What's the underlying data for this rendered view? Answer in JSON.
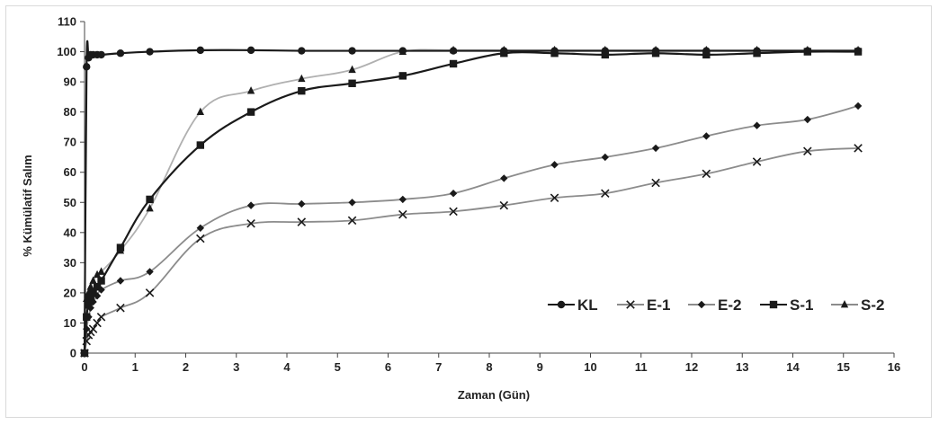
{
  "chart_data": {
    "type": "line",
    "title": "",
    "xlabel": "Zaman  (Gün)",
    "ylabel": "% Kümülatif Salım",
    "xlim": [
      0,
      16
    ],
    "ylim": [
      0,
      110
    ],
    "xticks": [
      "0",
      "1",
      "2",
      "3",
      "4",
      "5",
      "6",
      "7",
      "8",
      "9",
      "10",
      "11",
      "12",
      "13",
      "14",
      "15",
      "16"
    ],
    "yticks": [
      "0",
      "10",
      "20",
      "30",
      "40",
      "50",
      "60",
      "70",
      "80",
      "90",
      "100",
      "110"
    ],
    "grid": false,
    "legend_position": "bottom-right",
    "series": [
      {
        "name": "KL",
        "marker": "circle",
        "color": "#1a1a1a",
        "x": [
          0,
          0.04,
          0.08,
          0.12,
          0.17,
          0.25,
          0.33,
          0.71,
          1.29,
          2.29,
          3.29,
          4.29,
          5.29,
          6.29,
          7.29,
          8.29,
          9.29,
          10.29,
          11.29,
          12.29,
          13.29,
          14.29,
          15.29
        ],
        "y": [
          0,
          95,
          98,
          99,
          99,
          99,
          99,
          99.5,
          100,
          100.5,
          100.5,
          100.3,
          100.3,
          100.3,
          100.3,
          100.3,
          100.3,
          100.3,
          100.3,
          100.3,
          100.3,
          100.3,
          100.3
        ]
      },
      {
        "name": "E-1",
        "marker": "x",
        "color": "#8c8c8c",
        "x": [
          0,
          0.04,
          0.08,
          0.12,
          0.17,
          0.25,
          0.33,
          0.71,
          1.29,
          2.29,
          3.29,
          4.29,
          5.29,
          6.29,
          7.29,
          8.29,
          9.29,
          10.29,
          11.29,
          12.29,
          13.29,
          14.29,
          15.29
        ],
        "y": [
          0,
          4,
          6,
          7,
          8,
          10,
          12,
          15,
          20,
          38,
          43,
          43.5,
          44,
          46,
          47,
          49,
          51.5,
          53,
          56.5,
          59.5,
          63.5,
          67,
          68
        ]
      },
      {
        "name": "E-2",
        "marker": "diamond",
        "color": "#8c8c8c",
        "x": [
          0,
          0.04,
          0.08,
          0.12,
          0.17,
          0.25,
          0.33,
          0.71,
          1.29,
          2.29,
          3.29,
          4.29,
          5.29,
          6.29,
          7.29,
          8.29,
          9.29,
          10.29,
          11.29,
          12.29,
          13.29,
          14.29,
          15.29
        ],
        "y": [
          0,
          8,
          12,
          15,
          17,
          19,
          21,
          24,
          27,
          41.5,
          49,
          49.5,
          50,
          51,
          53,
          58,
          62.5,
          65,
          68,
          72,
          75.5,
          77.5,
          82
        ]
      },
      {
        "name": "S-1",
        "marker": "square",
        "color": "#1a1a1a",
        "x": [
          0,
          0.04,
          0.08,
          0.12,
          0.17,
          0.25,
          0.33,
          0.71,
          1.29,
          2.29,
          3.29,
          4.29,
          5.29,
          6.29,
          7.29,
          8.29,
          9.29,
          10.29,
          11.29,
          12.29,
          13.29,
          14.29,
          15.29
        ],
        "y": [
          0,
          12,
          16,
          18,
          20,
          22,
          24,
          35,
          51,
          69,
          80,
          87,
          89.5,
          92,
          96,
          99.5,
          99.5,
          99,
          99.5,
          99,
          99.5,
          100,
          100
        ]
      },
      {
        "name": "S-2",
        "marker": "triangle",
        "color": "#b0b0b0",
        "x": [
          0,
          0.04,
          0.08,
          0.12,
          0.17,
          0.25,
          0.33,
          0.71,
          1.29,
          2.29,
          3.29,
          4.29,
          5.29,
          6.29,
          7.29,
          8.29,
          9.29,
          10.29,
          11.29,
          12.29,
          13.29,
          14.29,
          15.29
        ],
        "y": [
          0,
          18,
          20,
          22,
          24,
          26,
          27,
          34,
          48,
          80,
          87,
          91,
          94,
          100,
          100.5,
          100.5,
          100.5,
          100.5,
          100.5,
          100.5,
          100.5,
          100.5,
          100.5
        ]
      }
    ]
  }
}
